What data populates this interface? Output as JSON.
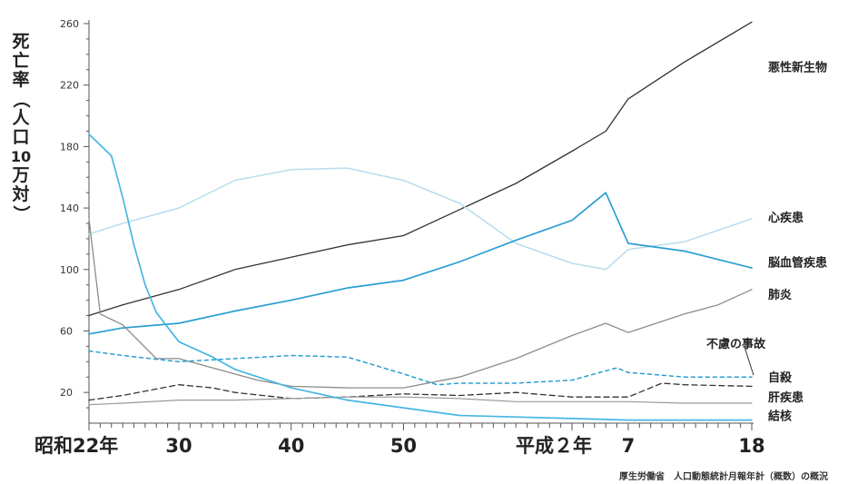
{
  "chart_data": {
    "type": "line",
    "ylabel_chars": [
      "死",
      "亡",
      "率",
      "（",
      "人",
      "口",
      "10",
      "万",
      "対",
      "）"
    ],
    "ylim": [
      0,
      260
    ],
    "yticks": [
      20,
      60,
      100,
      140,
      180,
      220,
      260
    ],
    "xlim": [
      1947,
      2006
    ],
    "xticks": [
      {
        "value": 1947,
        "label": "昭和22年"
      },
      {
        "value": 1955,
        "label": "30"
      },
      {
        "value": 1965,
        "label": "40"
      },
      {
        "value": 1975,
        "label": "50"
      },
      {
        "value": 1990,
        "label": "平成２年"
      },
      {
        "value": 1995,
        "label": "7"
      },
      {
        "value": 2006,
        "label": "18"
      }
    ],
    "source": "厚生労働省　人口動態統計月報年計（概数）の概況",
    "series": [
      {
        "name": "悪性新生物",
        "color": "#333333",
        "dash": "solid",
        "width": 1.3,
        "points": [
          [
            1947,
            70
          ],
          [
            1950,
            77
          ],
          [
            1955,
            87
          ],
          [
            1960,
            100
          ],
          [
            1965,
            108
          ],
          [
            1970,
            116
          ],
          [
            1975,
            122
          ],
          [
            1980,
            139
          ],
          [
            1985,
            156
          ],
          [
            1990,
            177
          ],
          [
            1993,
            190
          ],
          [
            1995,
            211
          ],
          [
            2000,
            235
          ],
          [
            2006,
            261
          ]
        ]
      },
      {
        "name": "心疾患",
        "color": "#b9dcee",
        "dash": "solid",
        "width": 1.5,
        "points": [
          [
            1947,
            123
          ],
          [
            1950,
            130
          ],
          [
            1955,
            140
          ],
          [
            1960,
            158
          ],
          [
            1965,
            165
          ],
          [
            1970,
            166
          ],
          [
            1975,
            158
          ],
          [
            1980,
            143
          ],
          [
            1985,
            117
          ],
          [
            1990,
            104
          ],
          [
            1993,
            100
          ],
          [
            1995,
            113
          ],
          [
            2000,
            118
          ],
          [
            2006,
            133
          ]
        ]
      },
      {
        "name": "脳血管疾患",
        "color": "#2b9fd2",
        "dash": "solid",
        "width": 1.7,
        "points": [
          [
            1947,
            58
          ],
          [
            1950,
            62
          ],
          [
            1955,
            65
          ],
          [
            1960,
            73
          ],
          [
            1965,
            80
          ],
          [
            1970,
            88
          ],
          [
            1975,
            93
          ],
          [
            1980,
            105
          ],
          [
            1985,
            119
          ],
          [
            1990,
            132
          ],
          [
            1993,
            150
          ],
          [
            1995,
            117
          ],
          [
            2000,
            112
          ],
          [
            2006,
            101
          ]
        ]
      },
      {
        "name": "肺炎",
        "color": "#8c8c8c",
        "dash": "solid",
        "width": 1.3,
        "points": [
          [
            1947,
            133
          ],
          [
            1948,
            71
          ],
          [
            1950,
            64
          ],
          [
            1953,
            42
          ],
          [
            1955,
            42
          ],
          [
            1958,
            36
          ],
          [
            1962,
            28
          ],
          [
            1965,
            24
          ],
          [
            1970,
            23
          ],
          [
            1975,
            23
          ],
          [
            1980,
            30
          ],
          [
            1985,
            42
          ],
          [
            1990,
            57
          ],
          [
            1993,
            65
          ],
          [
            1995,
            59
          ],
          [
            2000,
            71
          ],
          [
            2003,
            77
          ],
          [
            2006,
            87
          ]
        ]
      },
      {
        "name": "不慮の事故",
        "color": "#2b9fd2",
        "dash": "4,4",
        "width": 1.5,
        "points": [
          [
            1947,
            47
          ],
          [
            1950,
            44
          ],
          [
            1955,
            40
          ],
          [
            1960,
            42
          ],
          [
            1965,
            44
          ],
          [
            1970,
            43
          ],
          [
            1975,
            32
          ],
          [
            1978,
            25
          ],
          [
            1980,
            26
          ],
          [
            1985,
            26
          ],
          [
            1990,
            28
          ],
          [
            1994,
            36
          ],
          [
            1995,
            33
          ],
          [
            2000,
            30
          ],
          [
            2006,
            30
          ]
        ]
      },
      {
        "name": "自殺",
        "color": "#333333",
        "dash": "6,4",
        "width": 1.3,
        "points": [
          [
            1947,
            15
          ],
          [
            1950,
            18
          ],
          [
            1955,
            25
          ],
          [
            1958,
            23
          ],
          [
            1960,
            20
          ],
          [
            1965,
            16
          ],
          [
            1970,
            17
          ],
          [
            1975,
            19
          ],
          [
            1980,
            18
          ],
          [
            1985,
            20
          ],
          [
            1990,
            17
          ],
          [
            1995,
            17
          ],
          [
            1998,
            26
          ],
          [
            2000,
            25
          ],
          [
            2006,
            24
          ]
        ]
      },
      {
        "name": "肝疾患",
        "color": "#999999",
        "dash": "solid",
        "width": 1.2,
        "points": [
          [
            1947,
            12
          ],
          [
            1950,
            13
          ],
          [
            1955,
            15
          ],
          [
            1960,
            15
          ],
          [
            1965,
            16
          ],
          [
            1970,
            17
          ],
          [
            1975,
            17
          ],
          [
            1980,
            16
          ],
          [
            1985,
            14
          ],
          [
            1990,
            14
          ],
          [
            1995,
            14
          ],
          [
            2000,
            13
          ],
          [
            2006,
            13
          ]
        ]
      },
      {
        "name": "結核",
        "color": "#46b6e4",
        "dash": "solid",
        "width": 1.7,
        "points": [
          [
            1947,
            188
          ],
          [
            1948,
            181
          ],
          [
            1949,
            174
          ],
          [
            1950,
            147
          ],
          [
            1951,
            116
          ],
          [
            1952,
            90
          ],
          [
            1953,
            72
          ],
          [
            1955,
            53
          ],
          [
            1958,
            43
          ],
          [
            1960,
            35
          ],
          [
            1965,
            23
          ],
          [
            1970,
            15
          ],
          [
            1975,
            10
          ],
          [
            1980,
            5
          ],
          [
            1985,
            4
          ],
          [
            1990,
            3
          ],
          [
            1995,
            2
          ],
          [
            2000,
            2
          ],
          [
            2006,
            2
          ]
        ]
      }
    ]
  }
}
